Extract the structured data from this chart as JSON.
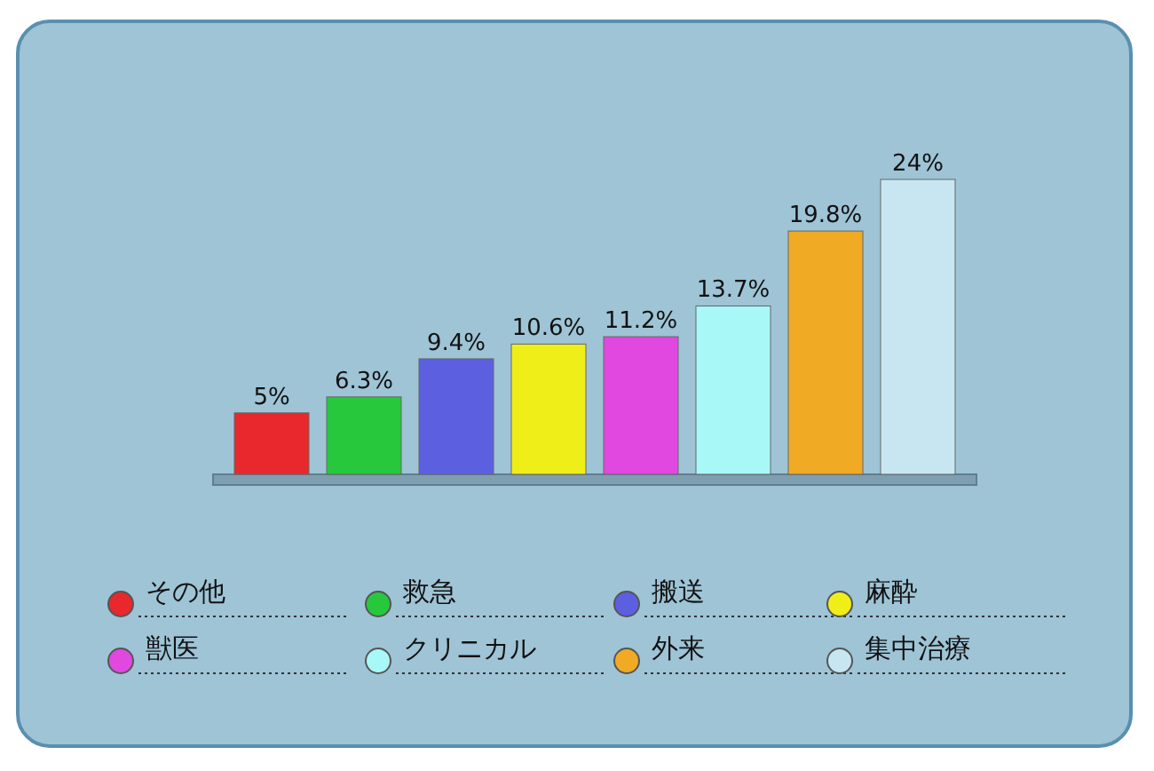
{
  "chart_data": {
    "type": "bar",
    "categories": [
      null,
      null,
      null,
      null,
      null,
      null,
      null,
      null
    ],
    "series": [
      {
        "name": "その他",
        "color": "#e8282c",
        "values": [
          5,
          null,
          null,
          null,
          null,
          null,
          null,
          null
        ],
        "value_labels": [
          "5%",
          null,
          null,
          null,
          null,
          null,
          null,
          null
        ]
      },
      {
        "name": "救急",
        "color": "#28c83c",
        "values": [
          null,
          6.3,
          null,
          null,
          null,
          null,
          null,
          null
        ],
        "value_labels": [
          null,
          "6.3%",
          null,
          null,
          null,
          null,
          null,
          null
        ]
      },
      {
        "name": "搬送",
        "color": "#5c60e0",
        "values": [
          null,
          null,
          9.4,
          null,
          null,
          null,
          null,
          null
        ],
        "value_labels": [
          null,
          null,
          "9.4%",
          null,
          null,
          null,
          null,
          null
        ]
      },
      {
        "name": "麻酔",
        "color": "#f0ee18",
        "values": [
          null,
          null,
          null,
          10.6,
          null,
          null,
          null,
          null
        ],
        "value_labels": [
          null,
          null,
          null,
          "10.6%",
          null,
          null,
          null,
          null
        ]
      },
      {
        "name": "獣医",
        "color": "#e048e0",
        "values": [
          null,
          null,
          null,
          null,
          11.2,
          null,
          null,
          null
        ],
        "value_labels": [
          null,
          null,
          null,
          null,
          "11.2%",
          null,
          null,
          null
        ]
      },
      {
        "name": "クリニカル",
        "color": "#a8f8f8",
        "values": [
          null,
          null,
          null,
          null,
          null,
          13.7,
          null,
          null
        ],
        "value_labels": [
          null,
          null,
          null,
          null,
          null,
          "13.7%",
          null,
          null
        ]
      },
      {
        "name": "外来",
        "color": "#f0aa24",
        "values": [
          null,
          null,
          null,
          null,
          null,
          null,
          19.8,
          null
        ],
        "value_labels": [
          null,
          null,
          null,
          null,
          null,
          null,
          "19.8%",
          null
        ]
      },
      {
        "name": "集中治療",
        "color": "#c8e6f2",
        "values": [
          null,
          null,
          null,
          null,
          null,
          null,
          null,
          24
        ],
        "value_labels": [
          null,
          null,
          null,
          null,
          null,
          null,
          null,
          "24%"
        ]
      }
    ],
    "stacked": true,
    "legend": "bottom"
  }
}
